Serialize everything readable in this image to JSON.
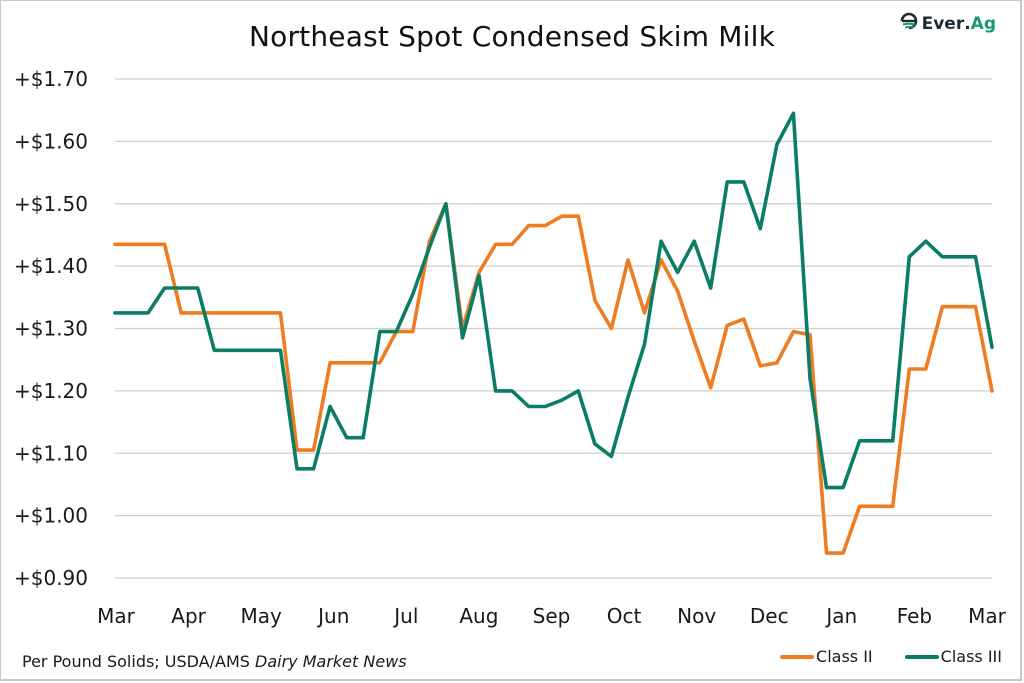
{
  "logo": {
    "text_main": "Ever",
    "text_dot": ".",
    "text_accent": "Ag",
    "brand_color": "#1a9b6c"
  },
  "footer": {
    "source_prefix": "Per Pound Solids; USDA/AMS ",
    "source_italic": "Dairy Market News"
  },
  "chart_data": {
    "type": "line",
    "title": "Northeast Spot Condensed Skim Milk",
    "xlabel": "",
    "ylabel": "",
    "ylim": [
      0.9,
      1.7
    ],
    "yticks": [
      1.7,
      1.6,
      1.5,
      1.4,
      1.3,
      1.2,
      1.1,
      1.0,
      0.9
    ],
    "ytick_labels": [
      "+$1.70",
      "+$1.60",
      "+$1.50",
      "+$1.40",
      "+$1.30",
      "+$1.20",
      "+$1.10",
      "+$1.00",
      "+$0.90"
    ],
    "xtick_labels": [
      "Mar",
      "Apr",
      "May",
      "Jun",
      "Jul",
      "Aug",
      "Sep",
      "Oct",
      "Nov",
      "Dec",
      "Jan",
      "Feb",
      "Mar"
    ],
    "grid": "horizontal",
    "legend_position": "bottom-right",
    "x_frequency": "weekly",
    "series": [
      {
        "name": "Class II",
        "color": "#f07c22",
        "values": [
          1.435,
          1.435,
          1.435,
          1.435,
          1.325,
          1.325,
          1.325,
          1.325,
          1.325,
          1.325,
          1.325,
          1.105,
          1.105,
          1.245,
          1.245,
          1.245,
          1.245,
          1.295,
          1.295,
          1.44,
          1.5,
          1.3,
          1.39,
          1.435,
          1.435,
          1.465,
          1.465,
          1.48,
          1.48,
          1.345,
          1.3,
          1.41,
          1.325,
          1.41,
          1.36,
          1.28,
          1.205,
          1.305,
          1.315,
          1.24,
          1.245,
          1.295,
          1.29,
          0.94,
          0.94,
          1.015,
          1.015,
          1.015,
          1.235,
          1.235,
          1.335,
          1.335,
          1.335,
          1.2
        ]
      },
      {
        "name": "Class III",
        "color": "#0b7d67",
        "values": [
          1.325,
          1.325,
          1.325,
          1.365,
          1.365,
          1.365,
          1.265,
          1.265,
          1.265,
          1.265,
          1.265,
          1.075,
          1.075,
          1.175,
          1.125,
          1.125,
          1.295,
          1.295,
          1.355,
          1.43,
          1.5,
          1.285,
          1.385,
          1.2,
          1.2,
          1.175,
          1.175,
          1.185,
          1.2,
          1.115,
          1.095,
          1.19,
          1.275,
          1.44,
          1.39,
          1.44,
          1.365,
          1.535,
          1.535,
          1.46,
          1.595,
          1.645,
          1.22,
          1.045,
          1.045,
          1.12,
          1.12,
          1.12,
          1.415,
          1.44,
          1.415,
          1.415,
          1.415,
          1.27
        ]
      }
    ]
  }
}
